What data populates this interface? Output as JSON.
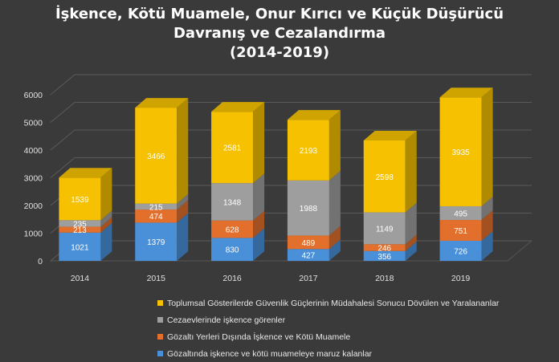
{
  "colors": {
    "blue": "#4a90d9",
    "orange": "#e2702c",
    "gray": "#9e9e9e",
    "yellow": "#f5c100",
    "background": "#3a3a3a"
  },
  "chart_data": {
    "type": "bar",
    "stacked": true,
    "title_lines": [
      "İşkence, Kötü Muamele, Onur Kırıcı ve Küçük Düşürücü",
      "Davranış ve Cezalandırma",
      "(2014-2019)"
    ],
    "categories": [
      "2014",
      "2015",
      "2016",
      "2017",
      "2018",
      "2019"
    ],
    "ylim": [
      0,
      6000
    ],
    "yticks": [
      "0",
      "1000",
      "2000",
      "3000",
      "4000",
      "5000",
      "6000"
    ],
    "grid": true,
    "legend_position": "bottom",
    "series": [
      {
        "name": "Gözaltında işkence ve kötü muameleye maruz kalanlar",
        "color": "#4a90d9",
        "values": [
          1021,
          1379,
          830,
          427,
          356,
          726
        ],
        "labels": [
          "1021",
          "1379",
          "830",
          "427",
          "356",
          "726"
        ]
      },
      {
        "name": "Gözaltı Yerleri Dışında İşkence ve Kötü Muamele",
        "color": "#e2702c",
        "values": [
          213,
          474,
          628,
          489,
          246,
          751
        ],
        "labels": [
          "213",
          "474",
          "628",
          "489",
          "246",
          "751"
        ]
      },
      {
        "name": "Cezaevlerinde işkence görenler",
        "color": "#9e9e9e",
        "values": [
          235,
          215,
          1348,
          1988,
          1149,
          495
        ],
        "labels": [
          "235",
          "215",
          "1348",
          "1988",
          "1149",
          "495"
        ]
      },
      {
        "name": "Toplumsal Gösterilerde Güvenlik Güçlerinin Müdahalesi Sonucu Dövülen ve Yaralananlar",
        "color": "#f5c100",
        "values": [
          1539,
          3466,
          2581,
          2193,
          2598,
          3935
        ],
        "labels": [
          "1539",
          "3466",
          "2581",
          "2193",
          "2598",
          "3935"
        ]
      }
    ],
    "legend_order": [
      3,
      2,
      1,
      0
    ]
  }
}
